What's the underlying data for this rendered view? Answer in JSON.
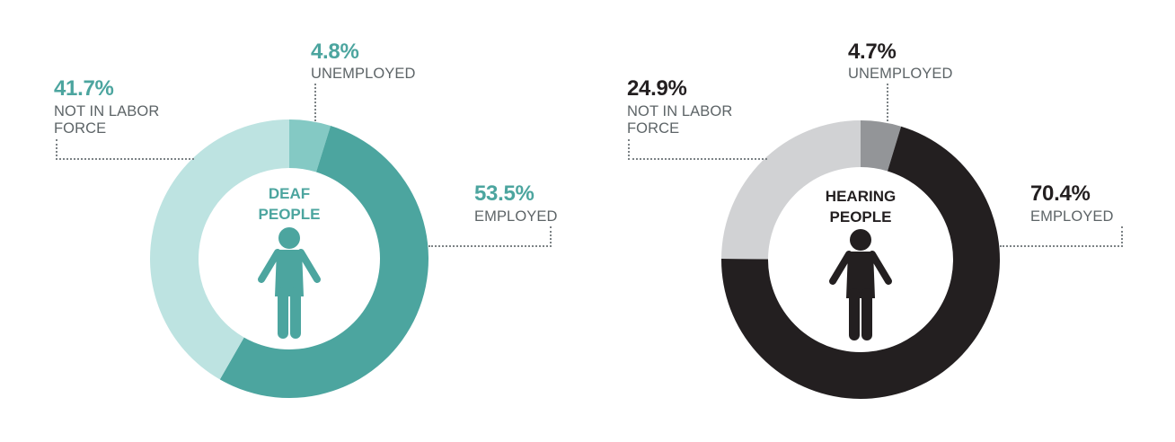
{
  "chart_data": [
    {
      "type": "pie",
      "variant": "donut",
      "title": "DEAF PEOPLE",
      "center_label": [
        "DEAF",
        "PEOPLE"
      ],
      "center_icon": "person-icon",
      "categories": [
        "UNEMPLOYED",
        "EMPLOYED",
        "NOT IN LABOR FORCE"
      ],
      "values": [
        4.8,
        53.5,
        41.7
      ],
      "unit": "%",
      "colors": [
        "#84c9c4",
        "#4ca59f",
        "#bde3e1"
      ],
      "start_angle": "12 o'clock, clockwise"
    },
    {
      "type": "pie",
      "variant": "donut",
      "title": "HEARING PEOPLE",
      "center_label": [
        "HEARING",
        "PEOPLE"
      ],
      "center_icon": "person-icon",
      "categories": [
        "UNEMPLOYED",
        "EMPLOYED",
        "NOT IN LABOR FORCE"
      ],
      "values": [
        4.7,
        70.4,
        24.9
      ],
      "unit": "%",
      "colors": [
        "#939598",
        "#231f20",
        "#d1d2d4"
      ],
      "start_angle": "12 o'clock, clockwise"
    }
  ],
  "deaf": {
    "accent": "#4ca59f",
    "title_line1": "DEAF",
    "title_line2": "PEOPLE",
    "unemployed": {
      "pct": "4.8%",
      "label": "UNEMPLOYED"
    },
    "employed": {
      "pct": "53.5%",
      "label": "EMPLOYED"
    },
    "nilf": {
      "pct": "41.7%",
      "label_line1": "NOT IN LABOR",
      "label_line2": "FORCE"
    }
  },
  "hearing": {
    "accent": "#231f20",
    "title_line1": "HEARING",
    "title_line2": "PEOPLE",
    "unemployed": {
      "pct": "4.7%",
      "label": "UNEMPLOYED"
    },
    "employed": {
      "pct": "70.4%",
      "label": "EMPLOYED"
    },
    "nilf": {
      "pct": "24.9%",
      "label_line1": "NOT IN LABOR",
      "label_line2": "FORCE"
    }
  }
}
